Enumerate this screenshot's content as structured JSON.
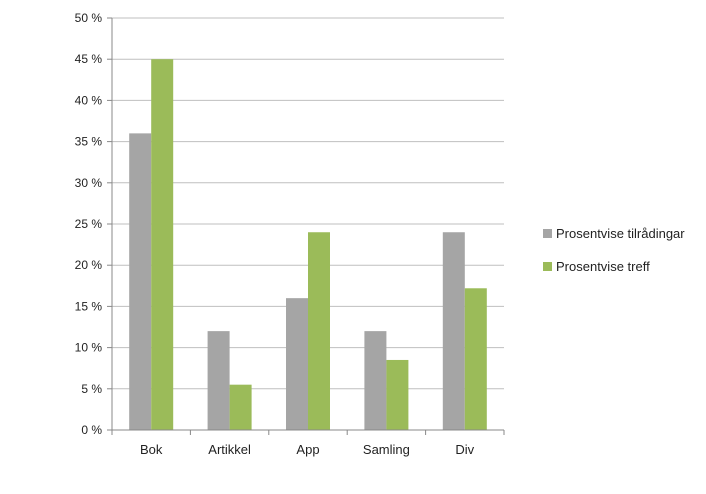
{
  "chart_data": {
    "type": "bar",
    "categories": [
      "Bok",
      "Artikkel",
      "App",
      "Samling",
      "Div"
    ],
    "series": [
      {
        "name": "Prosentvise tilrådingar",
        "values": [
          36,
          12,
          16,
          12,
          24
        ],
        "color": "#a5a5a5"
      },
      {
        "name": "Prosentvise treff",
        "values": [
          45,
          5.5,
          24,
          8.5,
          17.2
        ],
        "color": "#9bbb59"
      }
    ],
    "title": "",
    "xlabel": "",
    "ylabel": "",
    "ylim": [
      0,
      50
    ],
    "y_ticks": [
      0,
      5,
      10,
      15,
      20,
      25,
      30,
      35,
      40,
      45,
      50
    ],
    "y_tick_labels": [
      "0 %",
      "5 %",
      "10 %",
      "15 %",
      "20 %",
      "25 %",
      "30 %",
      "35 %",
      "40 %",
      "45 %",
      "50 %"
    ],
    "grid": true,
    "legend_position": "right",
    "gridline_color": "#bfbfbf",
    "axis_color": "#888888"
  }
}
